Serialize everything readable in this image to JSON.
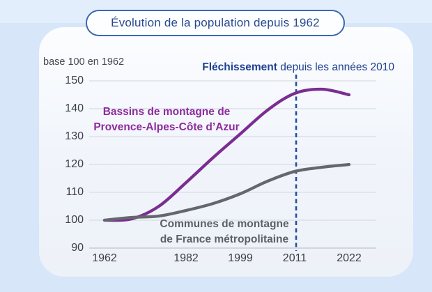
{
  "chart_data": {
    "type": "line",
    "title": "Évolution de la population depuis 1962",
    "ylabel": "base 100 en 1962",
    "xlabel": "",
    "annotation": {
      "bold": "Fléchissement",
      "rest": " depuis les années 2010"
    },
    "x": [
      1962,
      1968,
      1975,
      1982,
      1990,
      1999,
      2006,
      2011,
      2016,
      2022
    ],
    "x_tick_labels": [
      "1962",
      "1982",
      "1999",
      "2011",
      "2022"
    ],
    "x_tick_indices": [
      0,
      3,
      5,
      7,
      9
    ],
    "y_ticks": [
      90,
      100,
      110,
      120,
      130,
      140,
      150
    ],
    "ylim": [
      88,
      153
    ],
    "grid": true,
    "legend_position": "inline-labels",
    "series": [
      {
        "name": "Bassins de montagne de Provence-Alpes-Côte d’Azur",
        "label_lines": [
          "Bassins de montagne de",
          "Provence-Alpes-Côte d’Azur"
        ],
        "color": "#7b2d91",
        "label_color": "#8f2a9c",
        "values": [
          100,
          100.5,
          105,
          113.5,
          122.5,
          131,
          139.5,
          145.5,
          147,
          145
        ]
      },
      {
        "name": "Communes de montagne de France métropolitaine",
        "label_lines": [
          "Communes de montagne",
          "de France métropolitaine"
        ],
        "color": "#64676c",
        "label_color": "#5b5f66",
        "values": [
          100,
          101,
          101.5,
          103.5,
          106,
          109.5,
          114,
          117.5,
          119,
          120
        ]
      }
    ],
    "reference_line": {
      "at_year": 2011,
      "style": "dashed",
      "color": "#24509f"
    }
  },
  "colors": {
    "page_bg": "#d7e6f9",
    "page_bg_top_band": "#e3eefc",
    "card_bg": "#f1f5fb",
    "pill_border": "#3c67b0",
    "pill_text": "#27488f",
    "annotation_navy": "#1e4090",
    "gridline": "#d8dce3",
    "axis_line": "#c0c6d0",
    "tick_text": "#3c4046"
  }
}
